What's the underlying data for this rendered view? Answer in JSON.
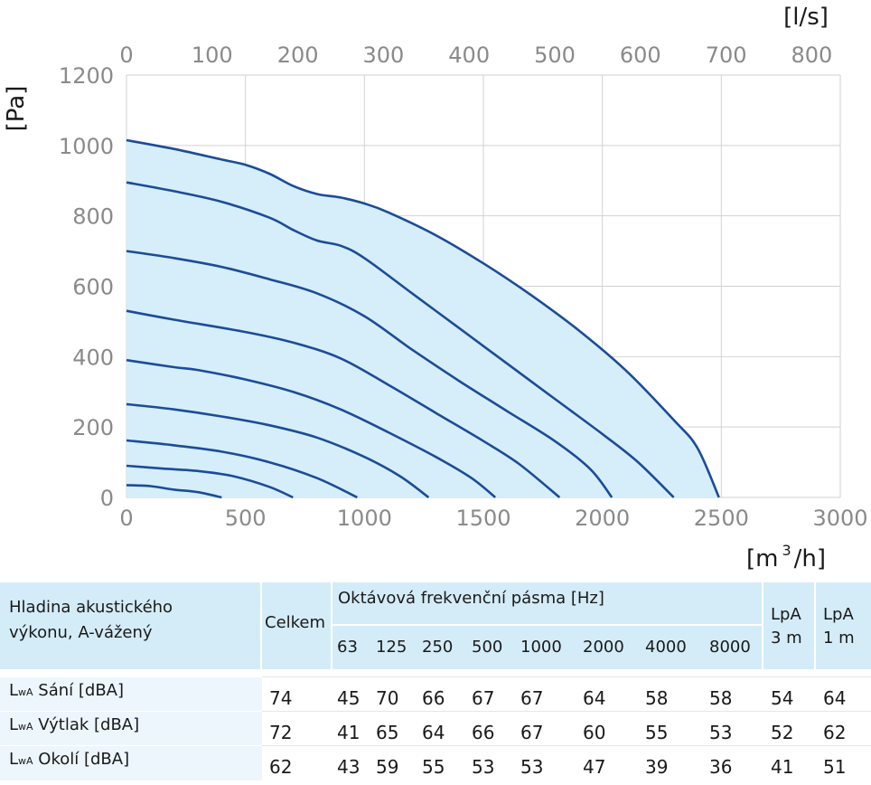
{
  "chart_data": {
    "type": "line",
    "x_unit": "[m³/h]",
    "x_unit_base": "[m",
    "x_unit_sup": "3",
    "x_unit_tail": "/h]",
    "x2_unit": "[l/s]",
    "y_unit": "[Pa]",
    "xlim": [
      0,
      3000
    ],
    "ylim": [
      0,
      1200
    ],
    "x2lim": [
      0,
      833.33
    ],
    "x_ticks": [
      "0",
      "500",
      "1000",
      "1500",
      "2000",
      "2500",
      "3000"
    ],
    "x2_ticks": [
      "0",
      "100",
      "200",
      "300",
      "400",
      "500",
      "600",
      "700",
      "800"
    ],
    "y_ticks": [
      "0",
      "200",
      "400",
      "600",
      "800",
      "1000",
      "1200"
    ],
    "grid": true,
    "fill_color": "#d5eef9",
    "line_color": "#1c4b9a",
    "series": [
      {
        "x": [
          0,
          100,
          200,
          300,
          400
        ],
        "y": [
          35,
          32,
          22,
          15,
          0
        ]
      },
      {
        "x": [
          0,
          150,
          300,
          450,
          600,
          700
        ],
        "y": [
          90,
          82,
          75,
          60,
          30,
          0
        ]
      },
      {
        "x": [
          0,
          200,
          400,
          600,
          800,
          970
        ],
        "y": [
          162,
          148,
          130,
          100,
          55,
          0
        ]
      },
      {
        "x": [
          0,
          200,
          400,
          600,
          800,
          1000,
          1150,
          1270
        ],
        "y": [
          265,
          250,
          230,
          205,
          170,
          115,
          60,
          0
        ]
      },
      {
        "x": [
          0,
          200,
          300,
          500,
          700,
          900,
          1100,
          1300,
          1450,
          1550
        ],
        "y": [
          390,
          370,
          362,
          335,
          300,
          250,
          185,
          115,
          55,
          0
        ]
      },
      {
        "x": [
          0,
          200,
          500,
          700,
          900,
          1100,
          1300,
          1500,
          1650,
          1820
        ],
        "y": [
          530,
          505,
          470,
          440,
          395,
          320,
          240,
          160,
          95,
          0
        ]
      },
      {
        "x": [
          0,
          200,
          400,
          600,
          800,
          1000,
          1200,
          1400,
          1600,
          1800,
          1950,
          2040
        ],
        "y": [
          700,
          680,
          655,
          620,
          580,
          515,
          420,
          330,
          245,
          160,
          80,
          0
        ]
      },
      {
        "x": [
          0,
          200,
          400,
          600,
          700,
          800,
          900,
          1000,
          1200,
          1400,
          1600,
          1800,
          2000,
          2150,
          2300
        ],
        "y": [
          895,
          870,
          840,
          795,
          760,
          730,
          715,
          680,
          580,
          480,
          380,
          280,
          180,
          100,
          0
        ]
      },
      {
        "x": [
          0,
          200,
          400,
          500,
          600,
          700,
          800,
          900,
          1000,
          1100,
          1300,
          1500,
          1700,
          1900,
          2100,
          2300,
          2400,
          2490
        ],
        "y": [
          1015,
          990,
          960,
          945,
          920,
          885,
          862,
          852,
          835,
          810,
          745,
          665,
          575,
          475,
          360,
          220,
          140,
          0
        ]
      }
    ]
  },
  "table": {
    "title_line1": "Hladina akustického",
    "title_line2": "výkonu, A-vážený",
    "total_label": "Celkem",
    "bands_label": "Oktávová frekvenční pásma [Hz]",
    "bands": [
      "63",
      "125",
      "250",
      "500",
      "1000",
      "2000",
      "4000",
      "8000"
    ],
    "lpa3_line1": "LpA",
    "lpa3_line2": "3 m",
    "lpa1_line1": "LpA",
    "lpa1_line2": "1 m",
    "rows": [
      {
        "prefix": "L",
        "sub": "wA",
        "name": "Sání [dBA]",
        "values": [
          "74",
          "45",
          "70",
          "66",
          "67",
          "67",
          "64",
          "58",
          "58",
          "54",
          "64"
        ]
      },
      {
        "prefix": "L",
        "sub": "wA",
        "name": "Výtlak [dBA]",
        "values": [
          "72",
          "41",
          "65",
          "64",
          "66",
          "67",
          "60",
          "55",
          "53",
          "52",
          "62"
        ]
      },
      {
        "prefix": "L",
        "sub": "wA",
        "name": "Okolí [dBA]",
        "values": [
          "62",
          "43",
          "59",
          "55",
          "53",
          "53",
          "47",
          "39",
          "36",
          "41",
          "51"
        ]
      }
    ]
  }
}
